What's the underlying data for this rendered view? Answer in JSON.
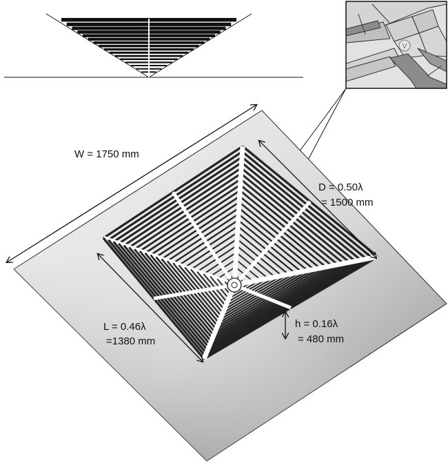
{
  "labels": {
    "width": "W = 1750 mm",
    "depth_ratio": "D = 0.50λ",
    "depth_mm": "= 1500 mm",
    "length_ratio": "L = 0.46λ",
    "length_mm": "=1380 mm",
    "height_ratio": "h = 0.16λ",
    "height_mm": "= 480 mm",
    "feed_marker": "V"
  },
  "colors": {
    "ground_plane_light": "#f4f4f4",
    "ground_plane_dark": "#8f8f8f",
    "wire": "#111111",
    "inset_light": "#d9d9d9",
    "inset_strip": "#8c8c8c"
  },
  "icons": [
    "feed-port-icon",
    "dimension-arrow-icon"
  ]
}
